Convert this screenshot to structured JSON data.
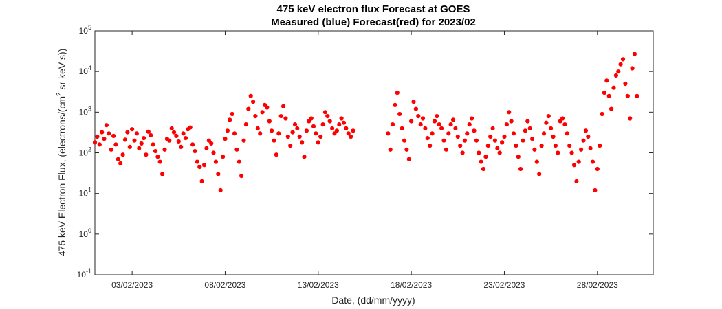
{
  "chart_data": {
    "type": "scatter",
    "title": "475 keV electron flux Forecast at GOES",
    "subtitle": "Measured (blue) Forecast(red) for 2023/02",
    "xlabel": "Date, (dd/mm/yyyy)",
    "ylabel_main": "475 keV Electron Flux, (electrons/(cm",
    "ylabel_sup": "2",
    "ylabel_tail": " sr keV s))",
    "yscale": "log",
    "ylim": [
      0.1,
      100000
    ],
    "xlim": [
      "2023-02-01",
      "2023-03-03"
    ],
    "grid": false,
    "x_ticks": [
      {
        "date": "2023-02-03",
        "label": "03/02/2023"
      },
      {
        "date": "2023-02-08",
        "label": "08/02/2023"
      },
      {
        "date": "2023-02-13",
        "label": "13/02/2023"
      },
      {
        "date": "2023-02-18",
        "label": "18/02/2023"
      },
      {
        "date": "2023-02-23",
        "label": "23/02/2023"
      },
      {
        "date": "2023-02-28",
        "label": "28/02/2023"
      }
    ],
    "y_ticks": [
      {
        "value": 0.1,
        "base": "10",
        "exp": "-1"
      },
      {
        "value": 1,
        "base": "10",
        "exp": "0"
      },
      {
        "value": 10,
        "base": "10",
        "exp": "1"
      },
      {
        "value": 100,
        "base": "10",
        "exp": "2"
      },
      {
        "value": 1000,
        "base": "10",
        "exp": "3"
      },
      {
        "value": 10000,
        "base": "10",
        "exp": "4"
      },
      {
        "value": 100000,
        "base": "10",
        "exp": "5"
      }
    ],
    "series": [
      {
        "color": "#ff0000",
        "points": [
          [
            "2023-02-01 00:00",
            180
          ],
          [
            "2023-02-01 03:00",
            250
          ],
          [
            "2023-02-01 06:00",
            160
          ],
          [
            "2023-02-01 09:00",
            320
          ],
          [
            "2023-02-01 12:00",
            220
          ],
          [
            "2023-02-01 15:00",
            480
          ],
          [
            "2023-02-01 18:00",
            300
          ],
          [
            "2023-02-01 21:00",
            120
          ],
          [
            "2023-02-02 00:00",
            260
          ],
          [
            "2023-02-02 03:00",
            160
          ],
          [
            "2023-02-02 06:00",
            70
          ],
          [
            "2023-02-02 09:00",
            55
          ],
          [
            "2023-02-02 12:00",
            90
          ],
          [
            "2023-02-02 15:00",
            210
          ],
          [
            "2023-02-02 18:00",
            320
          ],
          [
            "2023-02-02 21:00",
            140
          ],
          [
            "2023-02-03 00:00",
            380
          ],
          [
            "2023-02-03 03:00",
            200
          ],
          [
            "2023-02-03 06:00",
            300
          ],
          [
            "2023-02-03 09:00",
            130
          ],
          [
            "2023-02-03 12:00",
            170
          ],
          [
            "2023-02-03 15:00",
            230
          ],
          [
            "2023-02-03 18:00",
            90
          ],
          [
            "2023-02-03 21:00",
            330
          ],
          [
            "2023-02-04 00:00",
            270
          ],
          [
            "2023-02-04 03:00",
            160
          ],
          [
            "2023-02-04 06:00",
            110
          ],
          [
            "2023-02-04 09:00",
            80
          ],
          [
            "2023-02-04 12:00",
            60
          ],
          [
            "2023-02-04 15:00",
            30
          ],
          [
            "2023-02-04 18:00",
            120
          ],
          [
            "2023-02-04 21:00",
            220
          ],
          [
            "2023-02-05 00:00",
            200
          ],
          [
            "2023-02-05 03:00",
            400
          ],
          [
            "2023-02-05 06:00",
            320
          ],
          [
            "2023-02-05 09:00",
            260
          ],
          [
            "2023-02-05 12:00",
            190
          ],
          [
            "2023-02-05 15:00",
            140
          ],
          [
            "2023-02-05 18:00",
            300
          ],
          [
            "2023-02-05 21:00",
            230
          ],
          [
            "2023-02-06 00:00",
            380
          ],
          [
            "2023-02-06 03:00",
            420
          ],
          [
            "2023-02-06 06:00",
            160
          ],
          [
            "2023-02-06 09:00",
            110
          ],
          [
            "2023-02-06 12:00",
            60
          ],
          [
            "2023-02-06 15:00",
            45
          ],
          [
            "2023-02-06 18:00",
            20
          ],
          [
            "2023-02-06 21:00",
            50
          ],
          [
            "2023-02-07 00:00",
            130
          ],
          [
            "2023-02-07 03:00",
            200
          ],
          [
            "2023-02-07 06:00",
            170
          ],
          [
            "2023-02-07 09:00",
            100
          ],
          [
            "2023-02-07 12:00",
            60
          ],
          [
            "2023-02-07 15:00",
            30
          ],
          [
            "2023-02-07 18:00",
            12
          ],
          [
            "2023-02-07 21:00",
            80
          ],
          [
            "2023-02-08 00:00",
            220
          ],
          [
            "2023-02-08 03:00",
            350
          ],
          [
            "2023-02-08 06:00",
            650
          ],
          [
            "2023-02-08 09:00",
            900
          ],
          [
            "2023-02-08 12:00",
            300
          ],
          [
            "2023-02-08 15:00",
            120
          ],
          [
            "2023-02-08 18:00",
            60
          ],
          [
            "2023-02-08 21:00",
            27
          ],
          [
            "2023-02-09 00:00",
            200
          ],
          [
            "2023-02-09 03:00",
            500
          ],
          [
            "2023-02-09 06:00",
            1200
          ],
          [
            "2023-02-09 09:00",
            2500
          ],
          [
            "2023-02-09 12:00",
            1800
          ],
          [
            "2023-02-09 15:00",
            800
          ],
          [
            "2023-02-09 18:00",
            400
          ],
          [
            "2023-02-09 21:00",
            300
          ],
          [
            "2023-02-10 00:00",
            1000
          ],
          [
            "2023-02-10 03:00",
            1500
          ],
          [
            "2023-02-10 06:00",
            1300
          ],
          [
            "2023-02-10 09:00",
            600
          ],
          [
            "2023-02-10 12:00",
            350
          ],
          [
            "2023-02-10 15:00",
            200
          ],
          [
            "2023-02-10 18:00",
            90
          ],
          [
            "2023-02-10 21:00",
            300
          ],
          [
            "2023-02-11 00:00",
            800
          ],
          [
            "2023-02-11 03:00",
            1400
          ],
          [
            "2023-02-11 06:00",
            700
          ],
          [
            "2023-02-11 09:00",
            250
          ],
          [
            "2023-02-11 12:00",
            150
          ],
          [
            "2023-02-11 15:00",
            320
          ],
          [
            "2023-02-11 18:00",
            500
          ],
          [
            "2023-02-11 21:00",
            400
          ],
          [
            "2023-02-12 00:00",
            250
          ],
          [
            "2023-02-12 03:00",
            180
          ],
          [
            "2023-02-12 06:00",
            80
          ],
          [
            "2023-02-12 09:00",
            350
          ],
          [
            "2023-02-12 12:00",
            600
          ],
          [
            "2023-02-12 15:00",
            700
          ],
          [
            "2023-02-12 18:00",
            450
          ],
          [
            "2023-02-12 21:00",
            300
          ],
          [
            "2023-02-13 00:00",
            180
          ],
          [
            "2023-02-13 03:00",
            250
          ],
          [
            "2023-02-13 06:00",
            500
          ],
          [
            "2023-02-13 09:00",
            1000
          ],
          [
            "2023-02-13 12:00",
            800
          ],
          [
            "2023-02-13 15:00",
            600
          ],
          [
            "2023-02-13 18:00",
            400
          ],
          [
            "2023-02-13 21:00",
            300
          ],
          [
            "2023-02-14 00:00",
            350
          ],
          [
            "2023-02-14 03:00",
            500
          ],
          [
            "2023-02-14 06:00",
            700
          ],
          [
            "2023-02-14 09:00",
            550
          ],
          [
            "2023-02-14 12:00",
            400
          ],
          [
            "2023-02-14 15:00",
            300
          ],
          [
            "2023-02-14 18:00",
            250
          ],
          [
            "2023-02-14 21:00",
            350
          ],
          [
            "2023-02-16 18:00",
            300
          ],
          [
            "2023-02-16 21:00",
            120
          ],
          [
            "2023-02-17 00:00",
            500
          ],
          [
            "2023-02-17 03:00",
            1500
          ],
          [
            "2023-02-17 06:00",
            3000
          ],
          [
            "2023-02-17 09:00",
            900
          ],
          [
            "2023-02-17 12:00",
            400
          ],
          [
            "2023-02-17 15:00",
            200
          ],
          [
            "2023-02-17 18:00",
            120
          ],
          [
            "2023-02-17 21:00",
            70
          ],
          [
            "2023-02-18 00:00",
            600
          ],
          [
            "2023-02-18 03:00",
            1800
          ],
          [
            "2023-02-18 06:00",
            1200
          ],
          [
            "2023-02-18 09:00",
            800
          ],
          [
            "2023-02-18 12:00",
            500
          ],
          [
            "2023-02-18 15:00",
            700
          ],
          [
            "2023-02-18 18:00",
            400
          ],
          [
            "2023-02-18 21:00",
            230
          ],
          [
            "2023-02-19 00:00",
            150
          ],
          [
            "2023-02-19 03:00",
            300
          ],
          [
            "2023-02-19 06:00",
            600
          ],
          [
            "2023-02-19 09:00",
            800
          ],
          [
            "2023-02-19 12:00",
            500
          ],
          [
            "2023-02-19 15:00",
            400
          ],
          [
            "2023-02-19 18:00",
            200
          ],
          [
            "2023-02-19 21:00",
            120
          ],
          [
            "2023-02-20 00:00",
            300
          ],
          [
            "2023-02-20 03:00",
            500
          ],
          [
            "2023-02-20 06:00",
            650
          ],
          [
            "2023-02-20 09:00",
            400
          ],
          [
            "2023-02-20 12:00",
            250
          ],
          [
            "2023-02-20 15:00",
            150
          ],
          [
            "2023-02-20 18:00",
            100
          ],
          [
            "2023-02-20 21:00",
            200
          ],
          [
            "2023-02-21 00:00",
            300
          ],
          [
            "2023-02-21 03:00",
            500
          ],
          [
            "2023-02-21 06:00",
            700
          ],
          [
            "2023-02-21 09:00",
            350
          ],
          [
            "2023-02-21 12:00",
            200
          ],
          [
            "2023-02-21 15:00",
            100
          ],
          [
            "2023-02-21 18:00",
            60
          ],
          [
            "2023-02-21 21:00",
            40
          ],
          [
            "2023-02-22 00:00",
            80
          ],
          [
            "2023-02-22 03:00",
            150
          ],
          [
            "2023-02-22 06:00",
            250
          ],
          [
            "2023-02-22 09:00",
            400
          ],
          [
            "2023-02-22 12:00",
            200
          ],
          [
            "2023-02-22 15:00",
            130
          ],
          [
            "2023-02-22 18:00",
            100
          ],
          [
            "2023-02-22 21:00",
            180
          ],
          [
            "2023-02-23 00:00",
            250
          ],
          [
            "2023-02-23 03:00",
            500
          ],
          [
            "2023-02-23 06:00",
            1000
          ],
          [
            "2023-02-23 09:00",
            600
          ],
          [
            "2023-02-23 12:00",
            300
          ],
          [
            "2023-02-23 15:00",
            150
          ],
          [
            "2023-02-23 18:00",
            80
          ],
          [
            "2023-02-23 21:00",
            40
          ],
          [
            "2023-02-24 00:00",
            200
          ],
          [
            "2023-02-24 03:00",
            350
          ],
          [
            "2023-02-24 06:00",
            600
          ],
          [
            "2023-02-24 09:00",
            400
          ],
          [
            "2023-02-24 12:00",
            220
          ],
          [
            "2023-02-24 15:00",
            120
          ],
          [
            "2023-02-24 18:00",
            60
          ],
          [
            "2023-02-24 21:00",
            30
          ],
          [
            "2023-02-25 00:00",
            150
          ],
          [
            "2023-02-25 03:00",
            300
          ],
          [
            "2023-02-25 06:00",
            550
          ],
          [
            "2023-02-25 09:00",
            800
          ],
          [
            "2023-02-25 12:00",
            400
          ],
          [
            "2023-02-25 15:00",
            250
          ],
          [
            "2023-02-25 18:00",
            150
          ],
          [
            "2023-02-25 21:00",
            100
          ],
          [
            "2023-02-26 00:00",
            600
          ],
          [
            "2023-02-26 03:00",
            700
          ],
          [
            "2023-02-26 06:00",
            500
          ],
          [
            "2023-02-26 09:00",
            300
          ],
          [
            "2023-02-26 12:00",
            150
          ],
          [
            "2023-02-26 15:00",
            100
          ],
          [
            "2023-02-26 18:00",
            50
          ],
          [
            "2023-02-26 21:00",
            20
          ],
          [
            "2023-02-27 00:00",
            60
          ],
          [
            "2023-02-27 03:00",
            120
          ],
          [
            "2023-02-27 06:00",
            200
          ],
          [
            "2023-02-27 09:00",
            350
          ],
          [
            "2023-02-27 12:00",
            250
          ],
          [
            "2023-02-27 15:00",
            130
          ],
          [
            "2023-02-27 18:00",
            60
          ],
          [
            "2023-02-27 21:00",
            12
          ],
          [
            "2023-02-28 00:00",
            40
          ],
          [
            "2023-02-28 03:00",
            150
          ],
          [
            "2023-02-28 06:00",
            900
          ],
          [
            "2023-02-28 09:00",
            3000
          ],
          [
            "2023-02-28 12:00",
            6000
          ],
          [
            "2023-02-28 15:00",
            2500
          ],
          [
            "2023-02-28 18:00",
            1200
          ],
          [
            "2023-02-28 21:00",
            4000
          ],
          [
            "2023-03-01 00:00",
            8000
          ],
          [
            "2023-03-01 03:00",
            10000
          ],
          [
            "2023-03-01 06:00",
            15000
          ],
          [
            "2023-03-01 09:00",
            20000
          ],
          [
            "2023-03-01 12:00",
            5000
          ],
          [
            "2023-03-01 15:00",
            2500
          ],
          [
            "2023-03-01 18:00",
            700
          ],
          [
            "2023-03-01 21:00",
            12000
          ],
          [
            "2023-03-02 00:00",
            27000
          ],
          [
            "2023-03-02 03:00",
            2500
          ]
        ]
      }
    ]
  }
}
